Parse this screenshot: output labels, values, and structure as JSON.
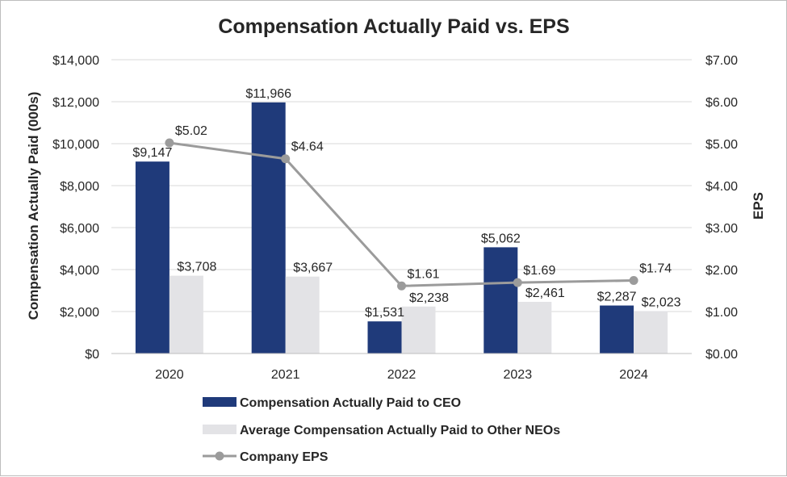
{
  "chart_data": {
    "type": "bar",
    "title": "Compensation Actually Paid vs. EPS",
    "categories": [
      "2020",
      "2021",
      "2022",
      "2023",
      "2024"
    ],
    "ylabel": "Compensation Actually Paid (000s)",
    "y2label": "EPS",
    "ylim": [
      0,
      14000
    ],
    "y2lim": [
      0,
      7
    ],
    "yticks": [
      "$0",
      "$2,000",
      "$4,000",
      "$6,000",
      "$8,000",
      "$10,000",
      "$12,000",
      "$14,000"
    ],
    "y2ticks": [
      "$0.00",
      "$1.00",
      "$2.00",
      "$3.00",
      "$4.00",
      "$5.00",
      "$6.00",
      "$7.00"
    ],
    "grid": true,
    "series": [
      {
        "name": "Compensation Actually Paid to CEO",
        "kind": "bar",
        "axis": "left",
        "color": "#1f3a7a",
        "values": [
          9147,
          11966,
          1531,
          5062,
          2287
        ],
        "labels": [
          "$9,147",
          "$11,966",
          "$1,531",
          "$5,062",
          "$2,287"
        ]
      },
      {
        "name": "Average Compensation Actually Paid to Other NEOs",
        "kind": "bar",
        "axis": "left",
        "color": "#e3e3e6",
        "values": [
          3708,
          3667,
          2238,
          2461,
          2023
        ],
        "labels": [
          "$3,708",
          "$3,667",
          "$2,238",
          "$2,461",
          "$2,023"
        ]
      },
      {
        "name": "Company EPS",
        "kind": "line",
        "axis": "right",
        "color": "#9b9b9b",
        "values": [
          5.02,
          4.64,
          1.61,
          1.69,
          1.74
        ],
        "labels": [
          "$5.02",
          "$4.64",
          "$1.61",
          "$1.69",
          "$1.74"
        ]
      }
    ],
    "legend_position": "bottom"
  }
}
